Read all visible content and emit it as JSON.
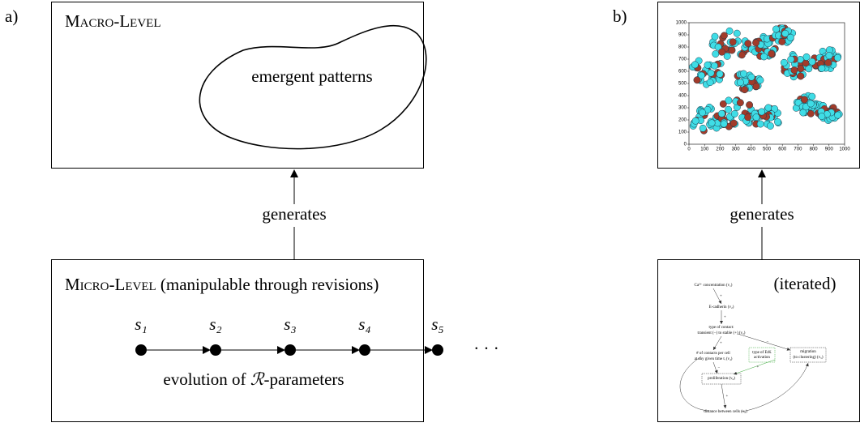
{
  "panel_a": {
    "label": "a)",
    "macro": {
      "title": "Macro-Level",
      "pattern": "emergent patterns"
    },
    "arrow_label": "generates",
    "micro": {
      "title_caps": "Micro-Level",
      "title_rest": "(manipulable through revisions)",
      "states": [
        "s₁",
        "s₂",
        "s₃",
        "s₄",
        "s₅"
      ],
      "ellipsis": "· · ·",
      "caption_pre": "evolution of",
      "caption_math": "ℛ",
      "caption_post": "-parameters"
    }
  },
  "panel_b": {
    "label": "b)",
    "plot": {
      "xticks": [
        0,
        100,
        200,
        300,
        400,
        500,
        600,
        700,
        800,
        900,
        1000
      ],
      "yticks": [
        0,
        100,
        200,
        300,
        400,
        500,
        600,
        700,
        800,
        900,
        1000
      ],
      "xlim": [
        0,
        1000
      ],
      "ylim": [
        0,
        1000
      ]
    },
    "arrow_label": "generates",
    "micro": {
      "tag": "(iterated)",
      "nodes": [
        "Ca²⁺ concentration (v₁)",
        "E-cadherin (v₂)",
        "type of contact:",
        "transient (−) to stable (+) (v₃)",
        "# of contacts per cell",
        "at any given time tᵢ (v₄)",
        "type of ErK",
        "activation",
        "migration",
        "(to clustering) (v₅)",
        "proliferation (v₆)",
        "distance between cells (v₈)"
      ],
      "edge_signs": [
        "+",
        "+",
        "+",
        "−",
        "−",
        "+",
        "+"
      ]
    }
  }
}
